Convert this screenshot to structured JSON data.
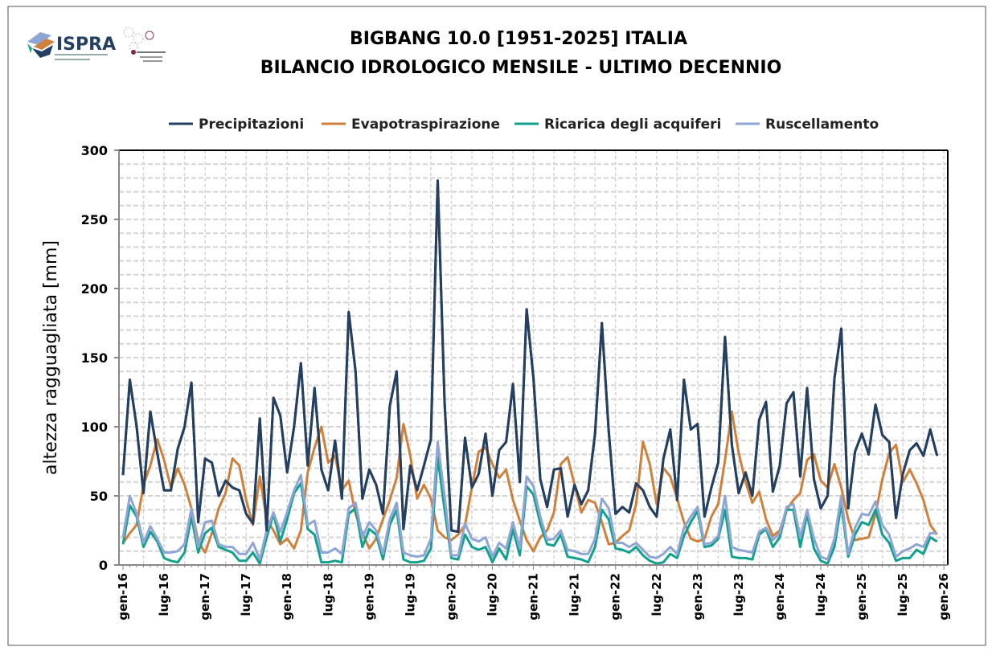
{
  "logos": {
    "left": "ISPRA",
    "right": "Sistema Nazionale per la Protezione dell'Ambiente"
  },
  "chart_data": {
    "type": "line",
    "title": [
      "BIGBANG 10.0 [1951-2025] ITALIA",
      "BILANCIO IDROLOGICO MENSILE - ULTIMO DECENNIO"
    ],
    "xlabel": "",
    "ylabel": "altezza ragguagliata [mm]",
    "ylim": [
      0,
      300
    ],
    "yticks": [
      0,
      50,
      100,
      150,
      200,
      250,
      300
    ],
    "grid": true,
    "legend_position": "top",
    "xtick_labels": [
      "gen-16",
      "lug-16",
      "gen-17",
      "lug-17",
      "gen-18",
      "lug-18",
      "gen-19",
      "lug-19",
      "gen-20",
      "lug-20",
      "gen-21",
      "lug-21",
      "gen-22",
      "lug-22",
      "gen-23",
      "lug-23",
      "gen-24",
      "lug-24",
      "gen-25",
      "lug-25",
      "gen-26"
    ],
    "x": [
      "gen-16",
      "feb-16",
      "mar-16",
      "apr-16",
      "mag-16",
      "giu-16",
      "lug-16",
      "ago-16",
      "set-16",
      "ott-16",
      "nov-16",
      "dic-16",
      "gen-17",
      "feb-17",
      "mar-17",
      "apr-17",
      "mag-17",
      "giu-17",
      "lug-17",
      "ago-17",
      "set-17",
      "ott-17",
      "nov-17",
      "dic-17",
      "gen-18",
      "feb-18",
      "mar-18",
      "apr-18",
      "mag-18",
      "giu-18",
      "lug-18",
      "ago-18",
      "set-18",
      "ott-18",
      "nov-18",
      "dic-18",
      "gen-19",
      "feb-19",
      "mar-19",
      "apr-19",
      "mag-19",
      "giu-19",
      "lug-19",
      "ago-19",
      "set-19",
      "ott-19",
      "nov-19",
      "dic-19",
      "gen-20",
      "feb-20",
      "mar-20",
      "apr-20",
      "mag-20",
      "giu-20",
      "lug-20",
      "ago-20",
      "set-20",
      "ott-20",
      "nov-20",
      "dic-20",
      "gen-21",
      "feb-21",
      "mar-21",
      "apr-21",
      "mag-21",
      "giu-21",
      "lug-21",
      "ago-21",
      "set-21",
      "ott-21",
      "nov-21",
      "dic-21",
      "gen-22",
      "feb-22",
      "mar-22",
      "apr-22",
      "mag-22",
      "giu-22",
      "lug-22",
      "ago-22",
      "set-22",
      "ott-22",
      "nov-22",
      "dic-22",
      "gen-23",
      "feb-23",
      "mar-23",
      "apr-23",
      "mag-23",
      "giu-23",
      "lug-23",
      "ago-23",
      "set-23",
      "ott-23",
      "nov-23",
      "dic-23",
      "gen-24",
      "feb-24",
      "mar-24",
      "apr-24",
      "mag-24",
      "giu-24",
      "lug-24",
      "ago-24",
      "set-24",
      "ott-24",
      "nov-24",
      "dic-24",
      "gen-25",
      "feb-25",
      "mar-25",
      "apr-25",
      "mag-25",
      "giu-25",
      "lug-25",
      "ago-25",
      "set-25",
      "ott-25",
      "nov-25",
      "dic-25"
    ],
    "series": [
      {
        "name": "Precipitazioni",
        "color": "#243F60",
        "values": [
          65,
          134,
          100,
          52,
          111,
          81,
          54,
          54,
          84,
          100,
          132,
          31,
          77,
          74,
          50,
          61,
          56,
          54,
          37,
          30,
          106,
          25,
          121,
          108,
          67,
          100,
          146,
          72,
          128,
          69,
          54,
          90,
          48,
          183,
          140,
          48,
          69,
          58,
          37,
          115,
          140,
          26,
          72,
          54,
          72,
          91,
          278,
          118,
          25,
          24,
          92,
          56,
          66,
          95,
          50,
          83,
          89,
          131,
          60,
          185,
          135,
          62,
          42,
          69,
          70,
          35,
          58,
          44,
          54,
          95,
          175,
          97,
          37,
          42,
          38,
          59,
          54,
          42,
          35,
          77,
          98,
          47,
          134,
          98,
          102,
          35,
          56,
          74,
          165,
          87,
          52,
          67,
          50,
          105,
          118,
          53,
          72,
          117,
          125,
          64,
          128,
          62,
          41,
          50,
          135,
          171,
          41,
          82,
          95,
          80,
          116,
          94,
          89,
          34,
          66,
          83,
          88,
          79,
          98,
          79
        ]
      },
      {
        "name": "Evapotraspirazione",
        "color": "#D0803A",
        "values": [
          16,
          23,
          29,
          58,
          72,
          91,
          76,
          56,
          70,
          58,
          41,
          17,
          9,
          23,
          41,
          52,
          77,
          72,
          47,
          29,
          64,
          33,
          25,
          15,
          19,
          12,
          25,
          67,
          85,
          100,
          74,
          79,
          54,
          61,
          37,
          23,
          12,
          19,
          33,
          47,
          63,
          102,
          79,
          48,
          58,
          48,
          25,
          20,
          18,
          22,
          29,
          56,
          82,
          85,
          73,
          63,
          69,
          47,
          32,
          18,
          10,
          20,
          25,
          38,
          73,
          78,
          58,
          38,
          47,
          45,
          31,
          15,
          16,
          21,
          25,
          44,
          89,
          73,
          44,
          70,
          64,
          48,
          31,
          19,
          17,
          19,
          35,
          44,
          76,
          111,
          81,
          60,
          45,
          53,
          33,
          21,
          25,
          40,
          47,
          52,
          76,
          80,
          61,
          56,
          73,
          56,
          33,
          18,
          19,
          20,
          37,
          62,
          81,
          87,
          60,
          69,
          59,
          47,
          29,
          22
        ]
      },
      {
        "name": "Ricarica degli acquiferi",
        "color": "#12A08F",
        "values": [
          15,
          43,
          35,
          13,
          24,
          17,
          5,
          3,
          2,
          9,
          35,
          9,
          23,
          27,
          13,
          11,
          9,
          3,
          3,
          9,
          1,
          20,
          37,
          17,
          33,
          52,
          59,
          26,
          22,
          2,
          2,
          3,
          2,
          37,
          41,
          13,
          26,
          22,
          4,
          29,
          40,
          4,
          2,
          2,
          3,
          12,
          78,
          40,
          5,
          4,
          22,
          13,
          11,
          13,
          2,
          12,
          4,
          26,
          7,
          57,
          51,
          30,
          15,
          14,
          22,
          6,
          5,
          4,
          2,
          13,
          40,
          33,
          12,
          11,
          9,
          13,
          7,
          3,
          1,
          2,
          8,
          5,
          21,
          31,
          39,
          13,
          14,
          19,
          40,
          6,
          5,
          5,
          4,
          22,
          26,
          13,
          20,
          40,
          40,
          13,
          37,
          12,
          3,
          1,
          13,
          44,
          6,
          22,
          31,
          29,
          40,
          22,
          16,
          3,
          5,
          5,
          11,
          8,
          20,
          17
        ]
      },
      {
        "name": "Ruscellamento",
        "color": "#8EA5D5",
        "values": [
          20,
          50,
          37,
          16,
          28,
          19,
          9,
          9,
          10,
          15,
          41,
          13,
          31,
          32,
          15,
          13,
          13,
          8,
          8,
          16,
          4,
          25,
          38,
          24,
          38,
          54,
          65,
          29,
          32,
          9,
          9,
          12,
          8,
          41,
          45,
          20,
          31,
          25,
          8,
          33,
          45,
          9,
          7,
          6,
          7,
          19,
          89,
          50,
          7,
          7,
          30,
          19,
          17,
          20,
          6,
          16,
          12,
          31,
          12,
          64,
          57,
          35,
          18,
          19,
          25,
          11,
          10,
          8,
          8,
          19,
          48,
          41,
          16,
          16,
          13,
          16,
          11,
          6,
          5,
          8,
          13,
          8,
          27,
          35,
          42,
          15,
          16,
          21,
          50,
          13,
          11,
          10,
          9,
          24,
          27,
          18,
          23,
          42,
          44,
          20,
          40,
          19,
          6,
          4,
          19,
          50,
          8,
          27,
          37,
          36,
          46,
          29,
          22,
          6,
          10,
          12,
          15,
          13,
          23,
          23
        ]
      }
    ]
  }
}
